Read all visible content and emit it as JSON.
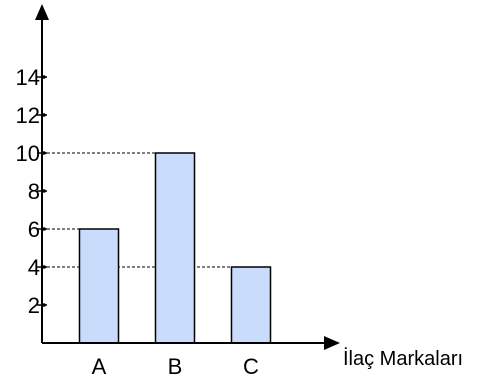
{
  "chart_data": {
    "type": "bar",
    "title": "",
    "xlabel": "İlaç Markaları",
    "ylabel": "",
    "categories": [
      "A",
      "B",
      "C"
    ],
    "values": [
      6,
      10,
      4
    ],
    "ylim": [
      0,
      16
    ],
    "yticks": [
      2,
      4,
      6,
      8,
      10,
      12,
      14
    ],
    "ytick_labels": [
      "2",
      "4",
      "6",
      "8",
      "10",
      "12",
      "14"
    ],
    "bar_color": "#cadcfc",
    "bar_stroke": "#000000",
    "axis_color": "#000000",
    "dashed_guides": true,
    "grid": false,
    "legend": "none"
  }
}
